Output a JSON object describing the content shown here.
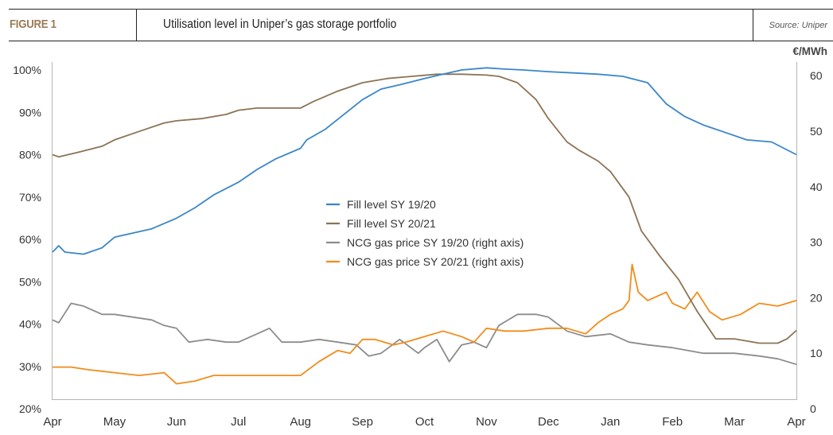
{
  "header": {
    "figure_label": "FIGURE 1",
    "title": "Utilisation level in Uniper’s gas storage portfolio",
    "source": "Source: Uniper"
  },
  "chart_data": {
    "type": "line",
    "title": "Utilisation level in Uniper’s gas storage portfolio",
    "xlabel": "",
    "ylabel": "",
    "y2label": "€/MWh",
    "x_ticks": [
      "Apr",
      "May",
      "Jun",
      "Jul",
      "Aug",
      "Sep",
      "Oct",
      "Nov",
      "Dec",
      "Jan",
      "Feb",
      "Mar",
      "Apr"
    ],
    "y_ticks": [
      "100%",
      "90%",
      "80%",
      "70%",
      "60%",
      "50%",
      "40%",
      "30%",
      "20%"
    ],
    "y2_ticks": [
      "60",
      "50",
      "40",
      "30",
      "20",
      "10",
      "0"
    ],
    "ylim": [
      20,
      100
    ],
    "y2lim": [
      0,
      60
    ],
    "grid": false,
    "legend_position": "center",
    "x_unit": "months since April (0 = Apr, 12 = following Apr)",
    "series": [
      {
        "name": "Fill level SY 19/20",
        "axis": "left",
        "color": "#3a86c8",
        "x": [
          0,
          0.1,
          0.2,
          0.5,
          0.8,
          1.0,
          1.3,
          1.6,
          2.0,
          2.3,
          2.6,
          3.0,
          3.3,
          3.6,
          4.0,
          4.1,
          4.4,
          4.7,
          5.0,
          5.3,
          5.6,
          6.0,
          6.3,
          6.6,
          7.0,
          7.3,
          7.6,
          8.0,
          8.4,
          8.8,
          9.2,
          9.6,
          9.9,
          10.2,
          10.5,
          10.8,
          11.2,
          11.6,
          12.0
        ],
        "values": [
          57,
          58.5,
          57,
          56.5,
          58,
          60.5,
          61.5,
          62.5,
          65,
          67.5,
          70.5,
          73.5,
          76.5,
          79,
          81.5,
          83.5,
          86,
          89.5,
          93,
          95.5,
          96.5,
          98,
          99,
          100,
          100.5,
          100.2,
          100,
          99.6,
          99.3,
          99,
          98.5,
          97,
          92,
          89,
          87,
          85.5,
          83.5,
          83,
          80
        ]
      },
      {
        "name": "Fill level SY 20/21",
        "axis": "left",
        "color": "#8b7355",
        "x": [
          0,
          0.1,
          0.4,
          0.8,
          1.0,
          1.4,
          1.8,
          2.0,
          2.4,
          2.8,
          3.0,
          3.3,
          3.6,
          4.0,
          4.2,
          4.6,
          5.0,
          5.4,
          5.8,
          6.2,
          6.6,
          7.0,
          7.2,
          7.5,
          7.8,
          8.0,
          8.3,
          8.5,
          8.8,
          9.0,
          9.3,
          9.5,
          9.8,
          10.1,
          10.4,
          10.7,
          11.0,
          11.4,
          11.7,
          11.85,
          12.0
        ],
        "values": [
          80,
          79.5,
          80.5,
          82,
          83.5,
          85.5,
          87.5,
          88,
          88.5,
          89.5,
          90.5,
          91,
          91,
          91,
          92.5,
          95,
          97,
          98,
          98.5,
          99,
          99,
          98.8,
          98.5,
          97,
          93,
          88.5,
          83,
          81,
          78.5,
          76,
          70,
          62,
          56,
          50.5,
          43,
          36.5,
          36.5,
          35.5,
          35.5,
          36.5,
          38.5
        ]
      },
      {
        "name": "NCG gas price SY 19/20 (right axis)",
        "axis": "right",
        "color": "#8c8c8c",
        "x": [
          0,
          0.1,
          0.3,
          0.5,
          0.8,
          1.0,
          1.3,
          1.6,
          1.8,
          2.0,
          2.2,
          2.5,
          2.8,
          3.0,
          3.3,
          3.5,
          3.7,
          4.0,
          4.3,
          4.6,
          4.9,
          5.1,
          5.3,
          5.6,
          5.9,
          6.0,
          6.2,
          6.4,
          6.6,
          6.8,
          7.0,
          7.2,
          7.5,
          7.8,
          8.0,
          8.3,
          8.6,
          9.0,
          9.3,
          9.6,
          10.0,
          10.5,
          11.0,
          11.4,
          11.7,
          12.0
        ],
        "values": [
          16,
          15.5,
          19,
          18.5,
          17,
          17,
          16.5,
          16,
          15,
          14.5,
          12,
          12.5,
          12,
          12,
          13.5,
          14.5,
          12,
          12,
          12.5,
          12,
          11.5,
          9.5,
          10,
          12.5,
          10,
          11,
          12.5,
          8.5,
          11.5,
          12,
          11,
          15,
          17,
          17,
          16.5,
          14,
          13,
          13.5,
          12,
          11.5,
          11,
          10,
          10,
          9.5,
          9,
          8
        ]
      },
      {
        "name": "NCG gas price SY 20/21 (right axis)",
        "axis": "right",
        "color": "#f28c1b",
        "x": [
          0,
          0.3,
          0.6,
          1.0,
          1.4,
          1.8,
          2.0,
          2.3,
          2.6,
          3.0,
          3.4,
          3.8,
          4.0,
          4.3,
          4.6,
          4.8,
          5.0,
          5.2,
          5.5,
          5.7,
          6.0,
          6.3,
          6.6,
          6.8,
          7.0,
          7.3,
          7.6,
          8.0,
          8.3,
          8.6,
          8.8,
          9.0,
          9.2,
          9.3,
          9.35,
          9.45,
          9.6,
          9.9,
          10.0,
          10.2,
          10.4,
          10.6,
          10.8,
          11.1,
          11.4,
          11.7,
          12.0
        ],
        "values": [
          7.5,
          7.5,
          7,
          6.5,
          6,
          6.5,
          4.5,
          5,
          6,
          6,
          6,
          6,
          6,
          8.5,
          10.5,
          10,
          12.5,
          12.5,
          11.5,
          12,
          13,
          14,
          13,
          12,
          14.5,
          14,
          14,
          14.5,
          14.5,
          13.5,
          15.5,
          17,
          18,
          19.5,
          26,
          21,
          19.5,
          21,
          19,
          18,
          21,
          17.5,
          16,
          17,
          19,
          18.5,
          19.5
        ]
      }
    ]
  }
}
